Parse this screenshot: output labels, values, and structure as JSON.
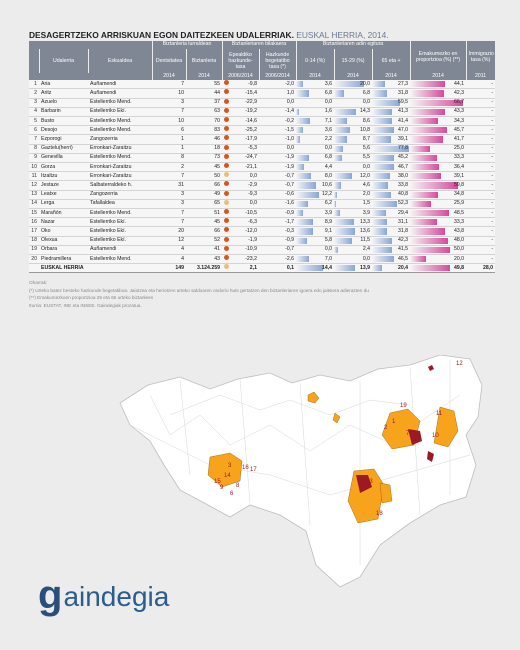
{
  "header": {
    "title": "DESAGERTZEKO ARRISKUAN EGON DAITEZKEEN UDALERRIAK.",
    "subtitle": "EUSKAL HERRIA, 2014."
  },
  "table": {
    "group_headers": [
      "Biztanleria lurraldean",
      "Biztanleriaren bilakaera",
      "Biztanleriaren adin egitura",
      "Emakumezko en proportzioa (%) (**)",
      "Immigrazio tasa (%)"
    ],
    "col_headers": [
      "Udalerria",
      "Eskualdea",
      "Dentsitatea",
      "Biztanleria",
      "Epealdiko hazkunde-tasa",
      "Hazkunde begetatibo tasa (*)",
      "0-14 (%)",
      "15-29 (%)",
      "65 eta +"
    ],
    "year_headers": [
      "2014",
      "2014",
      "2006/2014",
      "2006/2014",
      "2014",
      "2014",
      "2014",
      "2014",
      "2011"
    ],
    "rows": [
      {
        "n": "1",
        "name": "Aria",
        "region": "Auñamendi",
        "dens": "7",
        "pop": "55",
        "growth": "-9,8",
        "gc": "#d9541e",
        "veg": "-2,0",
        "a014": "3,6",
        "a1529": "20,0",
        "a65": "27,3",
        "women": "44,1",
        "immig": "-"
      },
      {
        "n": "2",
        "name": "Aritz",
        "region": "Auñamendi",
        "dens": "10",
        "pop": "44",
        "growth": "-15,4",
        "gc": "#d9541e",
        "veg": "1,0",
        "a014": "6,8",
        "a1529": "6,8",
        "a65": "31,8",
        "women": "42,3",
        "immig": "-"
      },
      {
        "n": "3",
        "name": "Azuelo",
        "region": "Estellerriko Mend.",
        "dens": "3",
        "pop": "37",
        "growth": "-22,9",
        "gc": "#d9541e",
        "veg": "0,0",
        "a014": "0,0",
        "a1529": "0,0",
        "a65": "59,5",
        "women": "66,7",
        "immig": "-"
      },
      {
        "n": "4",
        "name": "Barbarin",
        "region": "Estellerriko Ekí.",
        "dens": "7",
        "pop": "63",
        "growth": "-19,2",
        "gc": "#d9541e",
        "veg": "-1,4",
        "a014": "1,6",
        "a1529": "14,3",
        "a65": "41,3",
        "women": "43,3",
        "immig": "-"
      },
      {
        "n": "5",
        "name": "Busto",
        "region": "Estellerriko Mend.",
        "dens": "10",
        "pop": "70",
        "growth": "-14,6",
        "gc": "#d9541e",
        "veg": "-0,2",
        "a014": "7,1",
        "a1529": "8,6",
        "a65": "41,4",
        "women": "34,3",
        "immig": "-"
      },
      {
        "n": "6",
        "name": "Desojo",
        "region": "Estellerriko Mend.",
        "dens": "6",
        "pop": "83",
        "growth": "-25,2",
        "gc": "#d9541e",
        "veg": "-1,5",
        "a014": "3,6",
        "a1529": "10,8",
        "a65": "47,0",
        "women": "45,7",
        "immig": "-"
      },
      {
        "n": "7",
        "name": "Ezporogi",
        "region": "Zangozerria",
        "dens": "1",
        "pop": "46",
        "growth": "-17,9",
        "gc": "#d9541e",
        "veg": "-1,0",
        "a014": "2,2",
        "a1529": "8,7",
        "a65": "39,1",
        "women": "41,7",
        "immig": "-"
      },
      {
        "n": "8",
        "name": "Gaztelu(herri)",
        "region": "Erronkari-Zaraitzu",
        "dens": "1",
        "pop": "18",
        "growth": "-5,3",
        "gc": "#d9541e",
        "veg": "0,0",
        "a014": "0,0",
        "a1529": "5,6",
        "a65": "77,8",
        "women": "25,0",
        "immig": "-"
      },
      {
        "n": "9",
        "name": "Genevilla",
        "region": "Estellerriko Mend.",
        "dens": "8",
        "pop": "73",
        "growth": "-24,7",
        "gc": "#d9541e",
        "veg": "-1,9",
        "a014": "6,8",
        "a1529": "5,5",
        "a65": "45,2",
        "women": "33,3",
        "immig": "-"
      },
      {
        "n": "10",
        "name": "Gorza",
        "region": "Erronkari-Zaraitzu",
        "dens": "2",
        "pop": "45",
        "growth": "-21,1",
        "gc": "#d9541e",
        "veg": "-1,9",
        "a014": "4,4",
        "a1529": "0,0",
        "a65": "46,7",
        "women": "36,4",
        "immig": "-"
      },
      {
        "n": "11",
        "name": "Itzaltzu",
        "region": "Erronkari-Zaraitzu",
        "dens": "7",
        "pop": "50",
        "growth": "0,0",
        "gc": "#e8c07a",
        "veg": "-0,7",
        "a014": "8,0",
        "a1529": "12,0",
        "a65": "38,0",
        "women": "39,1",
        "immig": "-"
      },
      {
        "n": "12",
        "name": "Jestaze",
        "region": "Salbaterraldeko h.",
        "dens": "31",
        "pop": "66",
        "growth": "-2,9",
        "gc": "#d9541e",
        "veg": "-0,7",
        "a014": "10,6",
        "a1529": "4,6",
        "a65": "33,8",
        "women": "59,8",
        "immig": "-"
      },
      {
        "n": "13",
        "name": "Leatxe",
        "region": "Zangozerria",
        "dens": "3",
        "pop": "49",
        "growth": "-9,3",
        "gc": "#d9541e",
        "veg": "-0,6",
        "a014": "12,2",
        "a1529": "2,0",
        "a65": "40,8",
        "women": "34,8",
        "immig": "-"
      },
      {
        "n": "14",
        "name": "Lerga",
        "region": "Tafallaldea",
        "dens": "3",
        "pop": "65",
        "growth": "0,0",
        "gc": "#e8c07a",
        "veg": "-1,6",
        "a014": "6,2",
        "a1529": "1,5",
        "a65": "52,3",
        "women": "25,9",
        "immig": "-"
      },
      {
        "n": "15",
        "name": "Marañón",
        "region": "Estellerriko Mend.",
        "dens": "7",
        "pop": "51",
        "growth": "-10,5",
        "gc": "#d9541e",
        "veg": "-0,9",
        "a014": "3,9",
        "a1529": "3,9",
        "a65": "29,4",
        "women": "48,5",
        "immig": "-"
      },
      {
        "n": "16",
        "name": "Nazar",
        "region": "Estellerriko Ekí.",
        "dens": "7",
        "pop": "45",
        "growth": "-6,3",
        "gc": "#d9541e",
        "veg": "-1,7",
        "a014": "8,9",
        "a1529": "13,3",
        "a65": "31,1",
        "women": "33,3",
        "immig": "-"
      },
      {
        "n": "17",
        "name": "Oko",
        "region": "Estellerriko Ekí.",
        "dens": "20",
        "pop": "66",
        "growth": "-12,0",
        "gc": "#d9541e",
        "veg": "-0,3",
        "a014": "9,1",
        "a1529": "13,6",
        "a65": "31,8",
        "women": "43,8",
        "immig": "-"
      },
      {
        "n": "18",
        "name": "Olexua",
        "region": "Estellerriko Ekí.",
        "dens": "12",
        "pop": "52",
        "growth": "-1,9",
        "gc": "#d9541e",
        "veg": "-0,9",
        "a014": "5,8",
        "a1529": "11,5",
        "a65": "42,3",
        "women": "48,0",
        "immig": "-"
      },
      {
        "n": "19",
        "name": "Orbara",
        "region": "Auñamendi",
        "dens": "4",
        "pop": "41",
        "growth": "-10,9",
        "gc": "#d9541e",
        "veg": "-0,7",
        "a014": "0,0",
        "a1529": "2,4",
        "a65": "41,5",
        "women": "50,0",
        "immig": "-"
      },
      {
        "n": "20",
        "name": "Piedramillera",
        "region": "Estellerriko Mend.",
        "dens": "4",
        "pop": "43",
        "growth": "-23,2",
        "gc": "#d9541e",
        "veg": "-2,6",
        "a014": "7,0",
        "a1529": "0,0",
        "a65": "46,5",
        "women": "20,0",
        "immig": "-"
      }
    ],
    "total": {
      "name": "EUSKAL HERRIA",
      "dens": "149",
      "pop": "3.124.259",
      "growth": "2,1",
      "gc": "#e8c07a",
      "veg": "0,1",
      "a014": "14,4",
      "a1529": "13,9",
      "a65": "20,4",
      "women": "49,8",
      "immig": "28,0"
    }
  },
  "notes": [
    "Oharrak:",
    "(*) Urteko batez besteko hazkunde begetatiboa. Jaiotzea eta heriotzen arteko saldoaren ondorio huts gertatzen den biztanleriaren igoera edo jaitsiera adierazten du",
    "(**) Emakumezkoen proportzioa 25 eta 65 urteko biztanleen",
    "Iturria: EUSTAT, INE eta INSEE. Gaindegiak prozatua."
  ],
  "map": {
    "labels": [
      "12",
      "19",
      "11",
      "1",
      "2",
      "7",
      "10",
      "13",
      "3",
      "16",
      "17",
      "14",
      "15",
      "9",
      "6",
      "8",
      "18"
    ],
    "colors": {
      "orange": "#f7a41c",
      "darkred": "#9c1a24",
      "border": "#c8c8c8",
      "land": "#ffffff"
    }
  },
  "logo": {
    "mark": "g",
    "text": "aindegia"
  }
}
